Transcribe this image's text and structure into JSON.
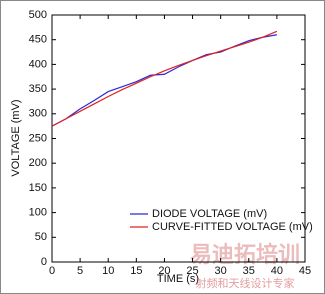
{
  "chart_data": {
    "type": "line",
    "xlabel": "TIME (s)",
    "ylabel": "VOLTAGE (mV)",
    "x": [
      0,
      2.5,
      5,
      7.5,
      10,
      12.5,
      15,
      17.5,
      20,
      22.5,
      25,
      27.5,
      30,
      32.5,
      35,
      37.5,
      40
    ],
    "series": [
      {
        "name": "DIODE VOLTAGE (mV)",
        "color": "#2a2ad8",
        "values": [
          275,
          290,
          310,
          327,
          345,
          355,
          365,
          378,
          380,
          395,
          408,
          420,
          425,
          437,
          448,
          455,
          460
        ]
      },
      {
        "name": "CURVE-FITTED VOLTAGE (mV)",
        "color": "#e02020",
        "values": [
          275,
          290,
          305,
          320,
          335,
          349,
          362,
          375,
          387,
          398,
          408,
          418,
          427,
          436,
          445,
          455,
          467
        ]
      }
    ],
    "xlim": [
      0,
      45
    ],
    "xticks": [
      0,
      5,
      10,
      15,
      20,
      25,
      30,
      35,
      40,
      45
    ],
    "ylim": [
      0,
      500
    ],
    "yticks": [
      0,
      50,
      100,
      150,
      200,
      250,
      300,
      350,
      400,
      450,
      500
    ],
    "grid": false,
    "legend": "lower right"
  },
  "watermark": [
    "易迪拓培训",
    "射频和天线设计专家"
  ]
}
